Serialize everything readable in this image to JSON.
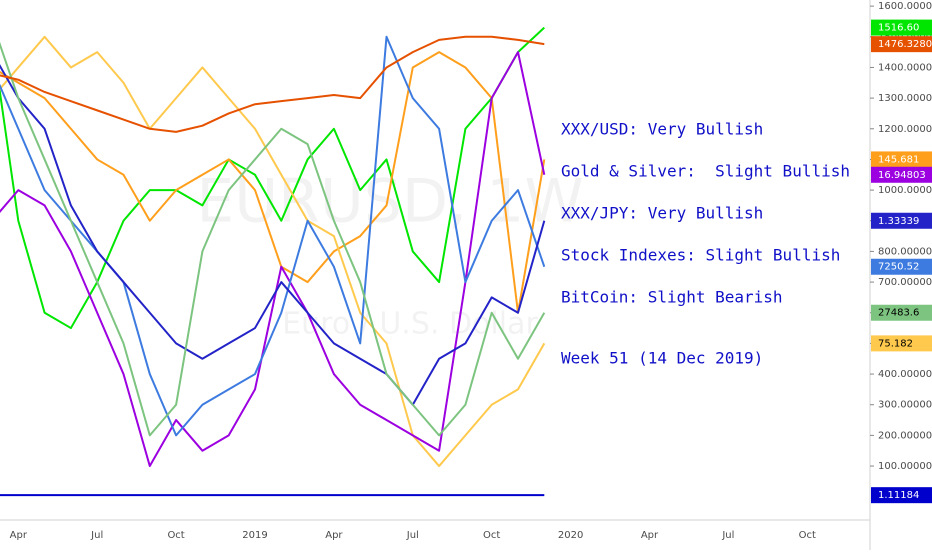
{
  "chart_data": {
    "type": "line",
    "watermark": [
      "EURUSD, 1W",
      "Euro / U.S. Dollar"
    ],
    "annotations": [
      "XXX/USD: Very Bullish",
      "Gold & Silver:  Slight Bullish",
      "XXX/JPY: Very Bullish",
      "Stock Indexes: Slight Bullish",
      "BitCoin: Slight Bearish",
      "Week 51 (14 Dec 2019)"
    ],
    "categories": [
      null,
      "Apr",
      null,
      null,
      "Jul",
      null,
      null,
      "Oct",
      null,
      null,
      "2019",
      null,
      null,
      "Apr",
      null,
      null,
      "Jul",
      null,
      null,
      "Oct",
      null,
      null,
      "2020",
      null,
      null,
      "Apr",
      null,
      null,
      "Jul",
      null,
      null,
      "Oct",
      null,
      null
    ],
    "ylim": [
      -76,
      1620
    ],
    "yticks": [
      {
        "value": 100,
        "label": "100.00000"
      },
      {
        "value": 200,
        "label": "200.00000"
      },
      {
        "value": 300,
        "label": "300.00000"
      },
      {
        "value": 400,
        "label": "400.00000"
      },
      {
        "value": 500,
        "label": "500.00000"
      },
      {
        "value": 600,
        "label": "600.00000"
      },
      {
        "value": 700,
        "label": "700.00000"
      },
      {
        "value": 800,
        "label": "800.00000"
      },
      {
        "value": 900,
        "label": "900.00000"
      },
      {
        "value": 1000,
        "label": "1000.00000"
      },
      {
        "value": 1100,
        "label": "1100.00000"
      },
      {
        "value": 1200,
        "label": "1200.00000"
      },
      {
        "value": 1300,
        "label": "1300.00000"
      },
      {
        "value": 1400,
        "label": "1400.00000"
      },
      {
        "value": 1500,
        "label": "1500.00000"
      },
      {
        "value": 1600,
        "label": "1600.00000"
      }
    ],
    "grid": false,
    "series": [
      {
        "color": "#00e600",
        "tag": "1516.60",
        "tag_text": "#ffffff",
        "values": [
          1500,
          900,
          600,
          550,
          700,
          900,
          1000,
          1000,
          950,
          1100,
          1050,
          900,
          1100,
          1200,
          1000,
          1100,
          800,
          700,
          1200,
          1300,
          1450,
          1530,
          null,
          null,
          null,
          null,
          null,
          null,
          null,
          null,
          null,
          null,
          null,
          null
        ]
      },
      {
        "color": "#ff9f1c",
        "tag": "145.681",
        "tag_text": "#ffffff",
        "values": [
          1400,
          1350,
          1300,
          1200,
          1100,
          1050,
          900,
          1000,
          1050,
          1100,
          1000,
          750,
          700,
          800,
          850,
          950,
          1400,
          1450,
          1400,
          1300,
          600,
          1100,
          null,
          null,
          null,
          null,
          null,
          null,
          null,
          null,
          null,
          null,
          null,
          null
        ]
      },
      {
        "color": "#ffc94d",
        "tag": "75.182",
        "tag_text": "#000000",
        "values": [
          1300,
          1400,
          1500,
          1400,
          1450,
          1350,
          1200,
          1300,
          1400,
          1300,
          1200,
          1050,
          900,
          850,
          600,
          500,
          200,
          100,
          200,
          300,
          350,
          500,
          null,
          null,
          null,
          null,
          null,
          null,
          null,
          null,
          null,
          null,
          null,
          null
        ]
      },
      {
        "color": "#9c00e0",
        "tag": "16.94803",
        "tag_text": "#ffffff",
        "values": [
          900,
          1000,
          950,
          800,
          600,
          400,
          100,
          250,
          150,
          200,
          350,
          750,
          600,
          400,
          300,
          250,
          200,
          150,
          700,
          1300,
          1450,
          1050,
          null,
          null,
          null,
          null,
          null,
          null,
          null,
          null,
          null,
          null,
          null,
          null
        ]
      },
      {
        "color": "#3d7be0",
        "tag": "7250.52",
        "tag_text": "#ffffff",
        "values": [
          1400,
          1200,
          1000,
          900,
          800,
          700,
          400,
          200,
          300,
          350,
          400,
          600,
          900,
          750,
          500,
          1500,
          1300,
          1200,
          700,
          900,
          1000,
          750,
          null,
          null,
          null,
          null,
          null,
          null,
          null,
          null,
          null,
          null,
          null,
          null
        ]
      },
      {
        "color": "#2323c8",
        "tag": "1.33339",
        "tag_text": "#ffffff",
        "values": [
          1450,
          1300,
          1200,
          950,
          800,
          700,
          600,
          500,
          450,
          500,
          550,
          700,
          600,
          500,
          450,
          400,
          300,
          450,
          500,
          650,
          600,
          900,
          null,
          null,
          null,
          null,
          null,
          null,
          null,
          null,
          null,
          null,
          null,
          null
        ]
      },
      {
        "color": "#7cc47f",
        "tag": "27483.6",
        "tag_text": "#000000",
        "values": [
          1550,
          1300,
          1100,
          900,
          700,
          500,
          200,
          300,
          800,
          1000,
          1100,
          1200,
          1150,
          900,
          700,
          400,
          300,
          200,
          300,
          600,
          450,
          600,
          null,
          null,
          null,
          null,
          null,
          null,
          null,
          null,
          null,
          null,
          null,
          null
        ]
      },
      {
        "color": "#e65100",
        "tag": "1476.32800",
        "tag_text": "#ffffff",
        "values": [
          1380,
          1360,
          1320,
          1290,
          1260,
          1230,
          1200,
          1190,
          1210,
          1250,
          1280,
          1290,
          1300,
          1310,
          1300,
          1400,
          1450,
          1490,
          1500,
          1500,
          1490,
          1476,
          null,
          null,
          null,
          null,
          null,
          null,
          null,
          null,
          null,
          null,
          null,
          null
        ]
      },
      {
        "color": "#0000cc",
        "tag": "1.11184",
        "tag_text": "#ffffff",
        "values": [
          5,
          5,
          5,
          5,
          5,
          5,
          5,
          5,
          5,
          5,
          5,
          5,
          5,
          5,
          5,
          5,
          5,
          5,
          5,
          5,
          5,
          5,
          null,
          null,
          null,
          null,
          null,
          null,
          null,
          null,
          null,
          null,
          null,
          null
        ]
      }
    ]
  }
}
